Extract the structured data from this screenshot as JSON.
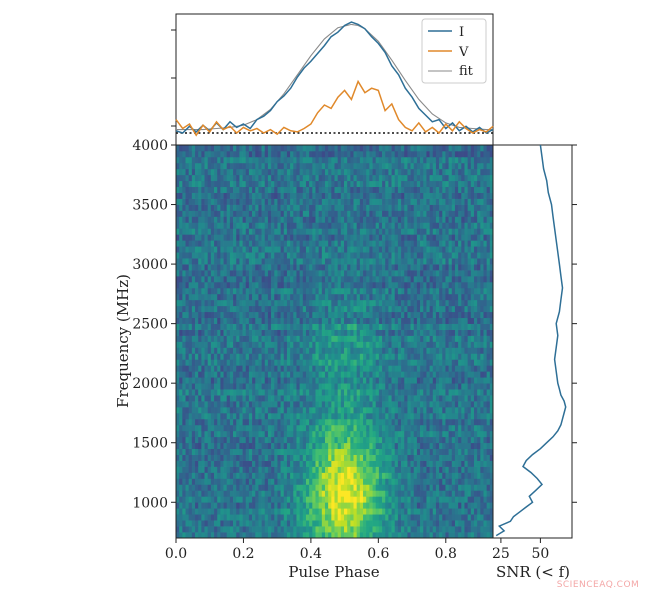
{
  "watermark": "SCIENCEAQ.COM",
  "chart_data": [
    {
      "panel": "profile",
      "type": "line",
      "xlim": [
        0.0,
        0.94
      ],
      "legend": {
        "placement": "top-right",
        "entries": [
          "I",
          "V",
          "fit"
        ]
      },
      "baseline_style": "dotted",
      "series": [
        {
          "name": "I",
          "color": "#2e6f96",
          "x": [
            0.0,
            0.02,
            0.04,
            0.06,
            0.08,
            0.1,
            0.12,
            0.14,
            0.16,
            0.18,
            0.2,
            0.22,
            0.24,
            0.26,
            0.28,
            0.3,
            0.32,
            0.34,
            0.36,
            0.38,
            0.4,
            0.42,
            0.44,
            0.46,
            0.48,
            0.5,
            0.52,
            0.54,
            0.56,
            0.58,
            0.6,
            0.62,
            0.64,
            0.66,
            0.68,
            0.7,
            0.72,
            0.74,
            0.76,
            0.78,
            0.8,
            0.82,
            0.84,
            0.86,
            0.88,
            0.9,
            0.92,
            0.94
          ],
          "y": [
            0.02,
            0.0,
            0.06,
            0.01,
            0.07,
            0.02,
            0.09,
            0.03,
            0.1,
            0.05,
            0.08,
            0.04,
            0.12,
            0.15,
            0.2,
            0.28,
            0.33,
            0.4,
            0.5,
            0.58,
            0.64,
            0.71,
            0.78,
            0.86,
            0.9,
            0.96,
            0.99,
            0.97,
            0.93,
            0.86,
            0.8,
            0.72,
            0.6,
            0.52,
            0.4,
            0.32,
            0.22,
            0.16,
            0.1,
            0.12,
            0.04,
            0.09,
            0.02,
            0.06,
            0.01,
            0.05,
            0.0,
            0.03
          ]
        },
        {
          "name": "V",
          "color": "#e0892b",
          "x": [
            0.0,
            0.02,
            0.04,
            0.06,
            0.08,
            0.1,
            0.12,
            0.14,
            0.16,
            0.18,
            0.2,
            0.22,
            0.24,
            0.26,
            0.28,
            0.3,
            0.32,
            0.34,
            0.36,
            0.38,
            0.4,
            0.42,
            0.44,
            0.46,
            0.48,
            0.5,
            0.52,
            0.54,
            0.56,
            0.58,
            0.6,
            0.62,
            0.64,
            0.66,
            0.68,
            0.7,
            0.72,
            0.74,
            0.76,
            0.78,
            0.8,
            0.82,
            0.84,
            0.86,
            0.88,
            0.9,
            0.92,
            0.94
          ],
          "y": [
            0.12,
            0.04,
            0.08,
            -0.02,
            0.07,
            0.01,
            0.1,
            0.03,
            0.06,
            0.0,
            0.05,
            0.02,
            0.04,
            0.0,
            0.03,
            -0.01,
            0.05,
            0.02,
            0.01,
            0.04,
            0.08,
            0.18,
            0.25,
            0.22,
            0.32,
            0.38,
            0.3,
            0.46,
            0.36,
            0.4,
            0.38,
            0.2,
            0.26,
            0.12,
            0.05,
            0.02,
            0.09,
            0.01,
            0.05,
            0.0,
            0.08,
            0.02,
            0.1,
            0.04,
            0.0,
            0.03,
            0.01,
            0.06
          ]
        },
        {
          "name": "fit",
          "color": "#8a8a8a",
          "x": [
            0.0,
            0.04,
            0.08,
            0.12,
            0.16,
            0.2,
            0.24,
            0.28,
            0.32,
            0.36,
            0.4,
            0.44,
            0.48,
            0.52,
            0.54,
            0.56,
            0.6,
            0.64,
            0.68,
            0.72,
            0.76,
            0.8,
            0.84,
            0.88,
            0.92,
            0.94
          ],
          "y": [
            0.03,
            0.03,
            0.03,
            0.04,
            0.05,
            0.07,
            0.12,
            0.21,
            0.35,
            0.52,
            0.69,
            0.84,
            0.94,
            0.97,
            0.96,
            0.93,
            0.82,
            0.65,
            0.47,
            0.3,
            0.17,
            0.09,
            0.05,
            0.04,
            0.03,
            0.03
          ]
        }
      ]
    },
    {
      "panel": "dynamic-spectrum",
      "type": "heatmap",
      "xlabel": "Pulse Phase",
      "ylabel": "Frequency (MHz)",
      "xlim": [
        0.0,
        0.94
      ],
      "ylim": [
        700,
        4000
      ],
      "xticks": [
        "0.0",
        "0.2",
        "0.4",
        "0.6",
        "0.8"
      ],
      "xtick_values": [
        0.0,
        0.2,
        0.4,
        0.6,
        0.8
      ],
      "yticks": [
        "1000",
        "1500",
        "2000",
        "2500",
        "3000",
        "3500",
        "4000"
      ],
      "ytick_values": [
        1000,
        1500,
        2000,
        2500,
        3000,
        3500,
        4000
      ],
      "colormap": "viridis",
      "n_phase_bins": 100,
      "n_freq_bins": 66,
      "emission": {
        "peak_phase": 0.5,
        "phase_width": 0.08,
        "strongest_freq_mhz": 1100,
        "fading_above_mhz": 2500
      }
    },
    {
      "panel": "snr",
      "type": "line",
      "xlabel": "SNR (< f)",
      "xticks": [
        "25",
        "50"
      ],
      "xtick_values": [
        25,
        50
      ],
      "xlim": [
        20,
        70
      ],
      "color": "#2e6f96",
      "freq_mhz": [
        720,
        760,
        800,
        840,
        880,
        920,
        960,
        1000,
        1050,
        1100,
        1150,
        1200,
        1250,
        1300,
        1350,
        1400,
        1450,
        1500,
        1550,
        1600,
        1650,
        1700,
        1750,
        1800,
        1850,
        1900,
        1950,
        2000,
        2100,
        2200,
        2300,
        2400,
        2500,
        2600,
        2700,
        2800,
        2900,
        3000,
        3100,
        3200,
        3300,
        3400,
        3500,
        3600,
        3700,
        3800,
        3900,
        4000
      ],
      "snr": [
        22,
        27,
        24,
        31,
        33,
        37,
        41,
        45,
        43,
        47,
        51,
        48,
        44,
        39,
        41,
        45,
        50,
        54,
        58,
        61,
        63,
        64,
        65,
        66,
        65,
        63,
        62,
        61,
        60,
        59,
        60,
        61,
        60,
        62,
        63,
        64,
        63,
        62,
        61,
        60,
        59,
        58,
        57,
        55,
        54,
        52,
        51,
        50
      ]
    }
  ]
}
